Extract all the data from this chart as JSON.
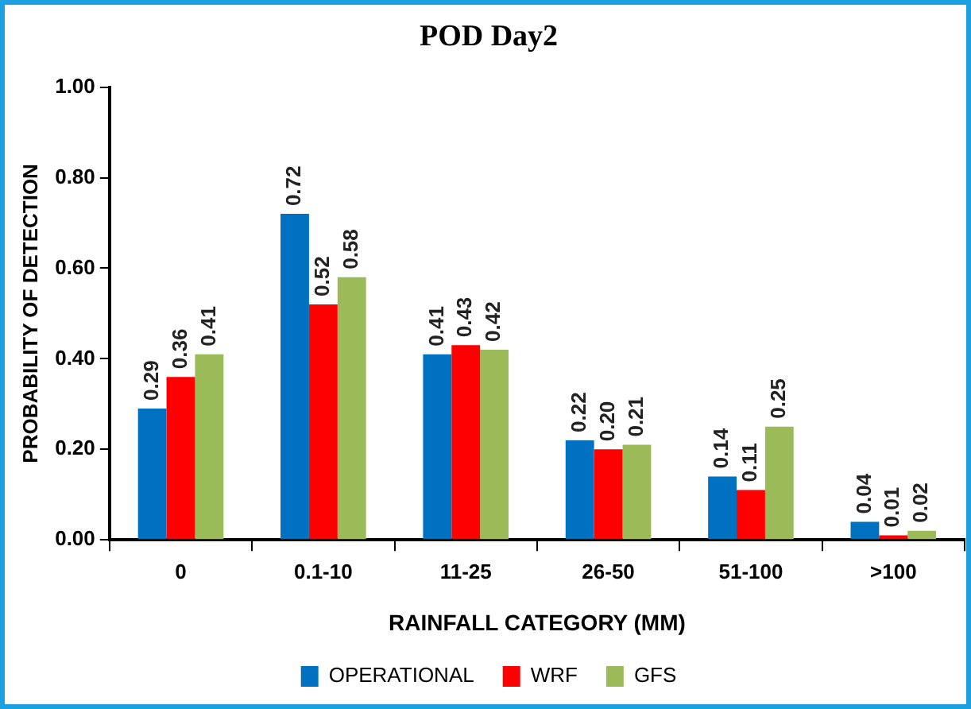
{
  "chart_data": {
    "type": "bar",
    "title": "POD Day2",
    "xlabel": "RAINFALL CATEGORY (MM)",
    "ylabel": "PROBABILITY OF DETECTION",
    "categories": [
      "0",
      "0.1-10",
      "11-25",
      "26-50",
      "51-100",
      ">100"
    ],
    "series": [
      {
        "name": "OPERATIONAL",
        "color": "#0070c0",
        "values": [
          0.29,
          0.72,
          0.41,
          0.22,
          0.14,
          0.04
        ],
        "value_labels": [
          "0.29",
          "0.72",
          "0.41",
          "0.22",
          "0.14",
          "0.04"
        ]
      },
      {
        "name": "WRF",
        "color": "#ff0000",
        "values": [
          0.36,
          0.52,
          0.43,
          0.2,
          0.11,
          0.01
        ],
        "value_labels": [
          "0.36",
          "0.52",
          "0.43",
          "0.20",
          "0.11",
          "0.01"
        ]
      },
      {
        "name": "GFS",
        "color": "#9bbb59",
        "values": [
          0.41,
          0.58,
          0.42,
          0.21,
          0.25,
          0.02
        ],
        "value_labels": [
          "0.41",
          "0.58",
          "0.42",
          "0.21",
          "0.25",
          "0.02"
        ]
      }
    ],
    "ylim": [
      0,
      1
    ],
    "yticks": [
      {
        "value": 0,
        "label": "0.00"
      },
      {
        "value": 0.2,
        "label": "0.20"
      },
      {
        "value": 0.4,
        "label": "0.40"
      },
      {
        "value": 0.6,
        "label": "0.60"
      },
      {
        "value": 0.8,
        "label": "0.80"
      },
      {
        "value": 1,
        "label": "1.00"
      }
    ],
    "grid": false,
    "legend": "bottom"
  }
}
